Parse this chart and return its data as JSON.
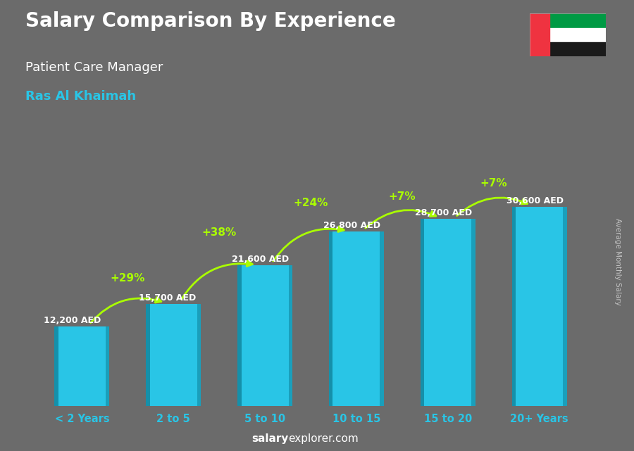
{
  "title": "Salary Comparison By Experience",
  "subtitle": "Patient Care Manager",
  "location": "Ras Al Khaimah",
  "ylabel": "Average Monthly Salary",
  "categories": [
    "< 2 Years",
    "2 to 5",
    "5 to 10",
    "10 to 15",
    "15 to 20",
    "20+ Years"
  ],
  "values": [
    12200,
    15700,
    21600,
    26800,
    28700,
    30600
  ],
  "labels": [
    "12,200 AED",
    "15,700 AED",
    "21,600 AED",
    "26,800 AED",
    "28,700 AED",
    "30,600 AED"
  ],
  "pct_labels": [
    "+29%",
    "+38%",
    "+24%",
    "+7%",
    "+7%"
  ],
  "bar_color_main": "#29C5E6",
  "bar_color_dark": "#1590AA",
  "bar_color_light": "#60DDEF",
  "bg_color": "#6b6b6b",
  "title_color": "#ffffff",
  "subtitle_color": "#ffffff",
  "location_color": "#29C5E6",
  "label_color": "#ffffff",
  "pct_color": "#aaff00",
  "xtick_color": "#29C5E6",
  "footer_color_bold": "#ffffff",
  "footer_color_normal": "#ffffff",
  "ylabel_color": "#cccccc",
  "ylim": [
    0,
    36000
  ],
  "bar_width": 0.6,
  "flag_colors": [
    "#FF0000",
    "#ffffff",
    "#009A44",
    "#000000"
  ]
}
